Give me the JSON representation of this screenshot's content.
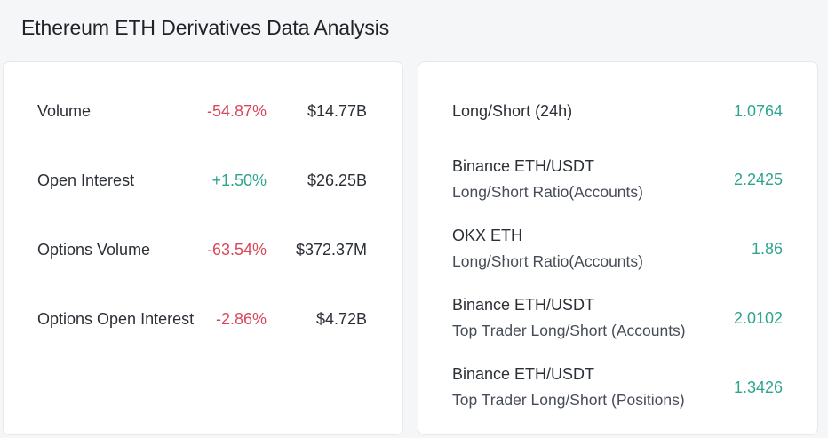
{
  "page": {
    "title": "Ethereum ETH Derivatives Data Analysis"
  },
  "left_panel": {
    "rows": [
      {
        "label": "Volume",
        "change": "-54.87%",
        "change_sign": "negative",
        "amount": "$14.77B"
      },
      {
        "label": "Open Interest",
        "change": "+1.50%",
        "change_sign": "positive",
        "amount": "$26.25B"
      },
      {
        "label": "Options Volume",
        "change": "-63.54%",
        "change_sign": "negative",
        "amount": "$372.37M"
      },
      {
        "label": "Options Open Interest",
        "change": "-2.86%",
        "change_sign": "negative",
        "amount": "$4.72B"
      }
    ]
  },
  "right_panel": {
    "rows": [
      {
        "line1": "Long/Short (24h)",
        "line2": "",
        "value": "1.0764"
      },
      {
        "line1": "Binance ETH/USDT",
        "line2": "Long/Short Ratio(Accounts)",
        "value": "2.2425"
      },
      {
        "line1": "OKX ETH",
        "line2": "Long/Short Ratio(Accounts)",
        "value": "1.86"
      },
      {
        "line1": "Binance ETH/USDT",
        "line2": "Top Trader Long/Short (Accounts)",
        "value": "2.0102"
      },
      {
        "line1": "Binance ETH/USDT",
        "line2": "Top Trader Long/Short (Positions)",
        "value": "1.3426"
      }
    ]
  },
  "colors": {
    "negative": "#d9475a",
    "positive": "#2ea58e",
    "text": "#2b2f36",
    "background": "#f5f6f7",
    "card": "#ffffff"
  }
}
